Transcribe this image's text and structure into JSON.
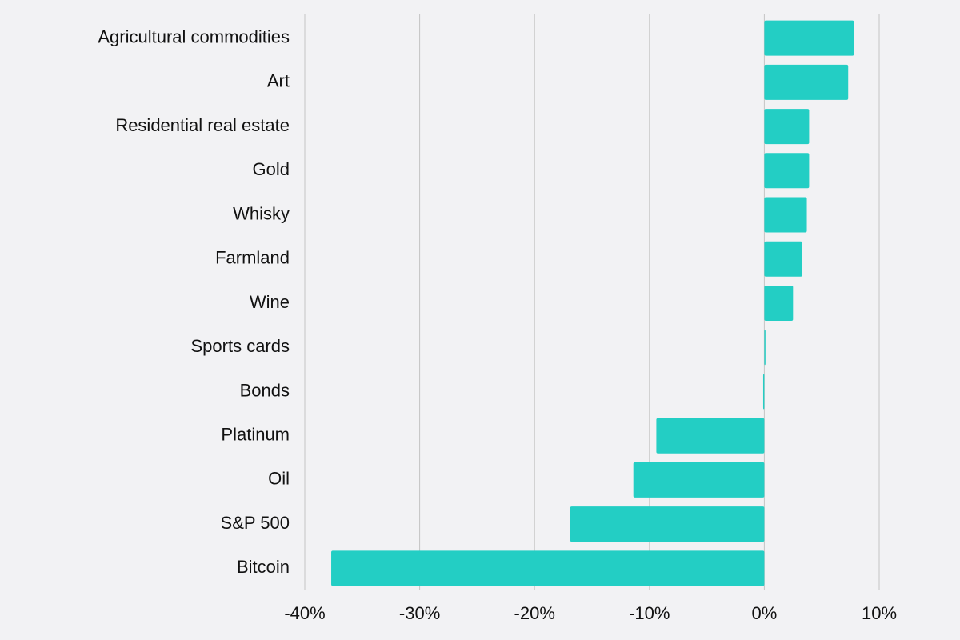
{
  "chart_data": {
    "type": "hbar",
    "categories": [
      "Agricultural commodities",
      "Art",
      "Residential real estate",
      "Gold",
      "Whisky",
      "Farmland",
      "Wine",
      "Sports cards",
      "Bonds",
      "Platinum",
      "Oil",
      "S&P 500",
      "Bitcoin"
    ],
    "values": [
      7.8,
      7.3,
      3.9,
      3.9,
      3.7,
      3.3,
      2.5,
      0.1,
      -0.1,
      -9.4,
      -11.4,
      -16.9,
      -37.7
    ],
    "color": "#23cec4",
    "xlim": [
      -40,
      10
    ],
    "xticks": [
      {
        "value": -40,
        "label": "-40%"
      },
      {
        "value": -30,
        "label": "-30%"
      },
      {
        "value": -20,
        "label": "-20%"
      },
      {
        "value": -10,
        "label": "-10%"
      },
      {
        "value": 0,
        "label": "0%"
      },
      {
        "value": 10,
        "label": "10%"
      }
    ],
    "grid": true
  }
}
